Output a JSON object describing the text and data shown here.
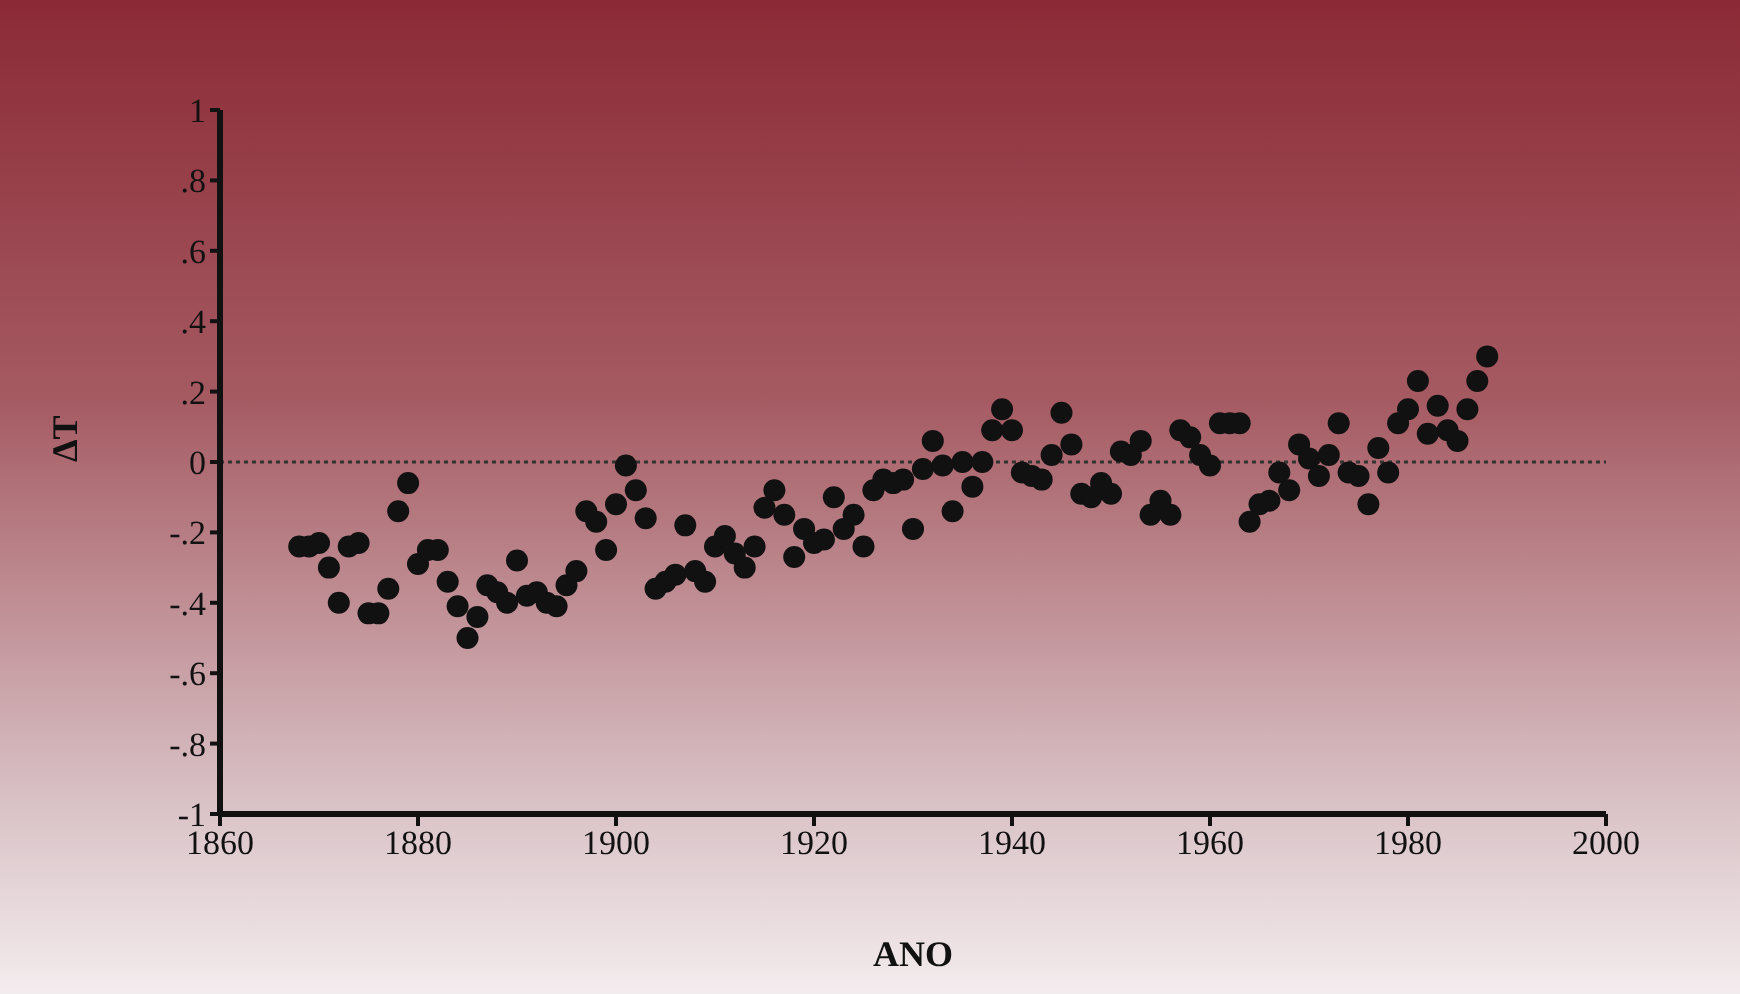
{
  "chart_data": {
    "type": "scatter",
    "xlabel": "ANO",
    "ylabel": "ΔT",
    "xlim": [
      1860,
      2000
    ],
    "xticks": [
      1860,
      1880,
      1900,
      1920,
      1940,
      1960,
      1980,
      2000
    ],
    "ylim": [
      -1,
      1
    ],
    "yticks": [
      {
        "value": -1,
        "label": "-1"
      },
      {
        "value": -0.8,
        "label": "-.8"
      },
      {
        "value": -0.6,
        "label": "-.6"
      },
      {
        "value": -0.4,
        "label": "-.4"
      },
      {
        "value": -0.2,
        "label": "-.2"
      },
      0,
      {
        "value": 0.2,
        "label": ".2"
      },
      {
        "value": 0.4,
        "label": ".4"
      },
      {
        "value": 0.6,
        "label": ".6"
      },
      {
        "value": 0.8,
        "label": ".8"
      },
      1
    ],
    "grid": false,
    "legend": false,
    "marker": "circle",
    "ref_lines": [
      {
        "axis": "y",
        "value": 0,
        "color": "#333333",
        "line_style": "dotted"
      }
    ],
    "series": [
      {
        "color": "#111111",
        "x": [
          1868,
          1869,
          1870,
          1871,
          1872,
          1873,
          1874,
          1875,
          1876,
          1877,
          1878,
          1879,
          1880,
          1881,
          1882,
          1883,
          1884,
          1885,
          1886,
          1887,
          1888,
          1889,
          1890,
          1891,
          1892,
          1893,
          1894,
          1895,
          1896,
          1897,
          1898,
          1899,
          1900,
          1901,
          1902,
          1903,
          1904,
          1905,
          1906,
          1907,
          1908,
          1909,
          1910,
          1911,
          1912,
          1913,
          1914,
          1915,
          1916,
          1917,
          1918,
          1919,
          1920,
          1921,
          1922,
          1923,
          1924,
          1925,
          1926,
          1927,
          1928,
          1929,
          1930,
          1931,
          1932,
          1933,
          1934,
          1935,
          1936,
          1937,
          1938,
          1939,
          1940,
          1941,
          1942,
          1943,
          1944,
          1945,
          1946,
          1947,
          1948,
          1949,
          1950,
          1951,
          1952,
          1953,
          1954,
          1955,
          1956,
          1957,
          1958,
          1959,
          1960,
          1961,
          1962,
          1963,
          1964,
          1965,
          1966,
          1967,
          1968,
          1969,
          1970,
          1971,
          1972,
          1973,
          1974,
          1975,
          1976,
          1977,
          1978,
          1979,
          1980,
          1981,
          1982,
          1983,
          1984,
          1985,
          1986,
          1987,
          1988
        ],
        "values": [
          -0.24,
          -0.24,
          -0.23,
          -0.3,
          -0.4,
          -0.24,
          -0.23,
          -0.43,
          -0.43,
          -0.36,
          -0.14,
          -0.06,
          -0.29,
          -0.25,
          -0.25,
          -0.34,
          -0.41,
          -0.5,
          -0.44,
          -0.35,
          -0.37,
          -0.4,
          -0.28,
          -0.38,
          -0.37,
          -0.4,
          -0.41,
          -0.35,
          -0.31,
          -0.14,
          -0.17,
          -0.25,
          -0.12,
          -0.01,
          -0.08,
          -0.16,
          -0.36,
          -0.34,
          -0.32,
          -0.18,
          -0.31,
          -0.34,
          -0.24,
          -0.21,
          -0.26,
          -0.3,
          -0.24,
          -0.13,
          -0.08,
          -0.15,
          -0.27,
          -0.19,
          -0.23,
          -0.22,
          -0.1,
          -0.19,
          -0.15,
          -0.24,
          -0.08,
          -0.05,
          -0.06,
          -0.05,
          -0.19,
          -0.02,
          0.06,
          -0.01,
          -0.14,
          0,
          -0.07,
          0,
          0.09,
          0.15,
          0.09,
          -0.03,
          -0.04,
          -0.05,
          0.02,
          0.14,
          0.05,
          -0.09,
          -0.1,
          -0.06,
          -0.09,
          0.03,
          0.02,
          0.06,
          -0.15,
          -0.11,
          -0.15,
          0.09,
          0.07,
          0.02,
          -0.01,
          0.11,
          0.11,
          0.11,
          -0.17,
          -0.12,
          -0.11,
          -0.03,
          -0.08,
          0.05,
          0.01,
          -0.04,
          0.02,
          0.11,
          -0.03,
          -0.04,
          -0.12,
          0.04,
          -0.03,
          0.11,
          0.15,
          0.23,
          0.08,
          0.16,
          0.09,
          0.06,
          0.15,
          0.23,
          0.3
        ]
      }
    ]
  }
}
